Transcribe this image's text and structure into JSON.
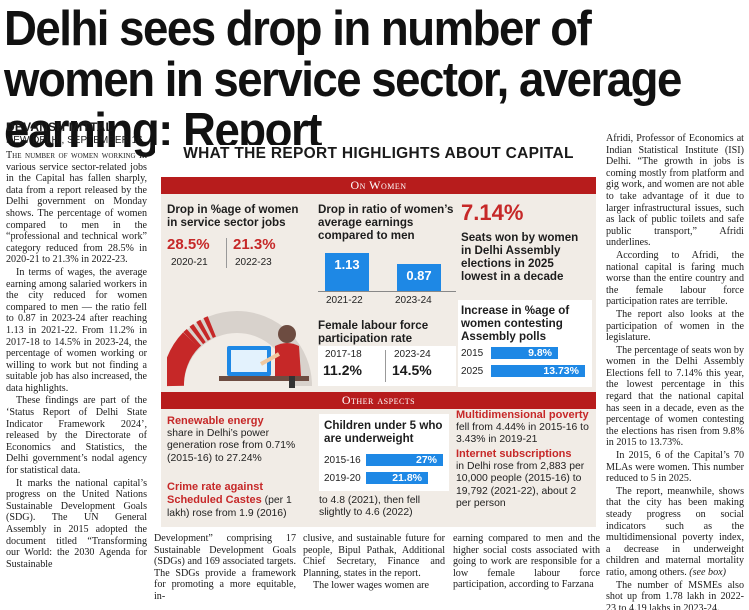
{
  "headline": "Delhi sees drop in number of women in service sector, average earning: Report",
  "byline": {
    "author": "DEVANSH MITTAL",
    "dateline": "NEW DELHI, SEPTEMBER 16"
  },
  "col1": {
    "p1_lead": "The number of women working",
    "p1_rest": " in various service sector-related jobs in the Capital has fallen sharply, data from a report released by the Delhi government on Monday shows. The percentage of women compared to men in the “professional and technical work” category reduced from 28.5% in 2020-21 to 21.3% in 2022-23.",
    "p2": "In terms of wages, the average earning among salaried workers in the city reduced for women compared to men — the ratio fell to 0.87 in 2023-24 after reaching 1.13 in 2021-22. From 11.2% in 2017-18 to 14.5% in 2023-24, the percentage of women working or willing to work but not finding a suitable job has also increased, the data highlights.",
    "p3": "These findings are part of the ‘Status Report of Delhi State Indicator Framework 2024’, released by the Directorate of Economics and Statistics, the Delhi government’s nodal agency for statistical data.",
    "p4": "It marks the national capital’s progress on the United Nations Sustainable Development Goals (SDG). The UN General Assembly in 2015 adopted the document titled “Transforming our World: the 2030 Agenda for Sustainable"
  },
  "col2a": "Development” comprising 17 Sustainable Development Goals (SDGs) and 169 associated targets. The SDGs provide a framework for promoting a more equitable, in-",
  "col2b": "clusive, and sustainable future for people, Bipul Pathak, Additional Chief Secretary, Finance and Planning, states in the report.",
  "col2b_p2": "The lower wages women are",
  "col2c": "earning compared to men and the higher social costs associated with going to work are responsible for a low female labour force participation, according to Farzana",
  "col3": {
    "p1": "Afridi, Professor of Economics at Indian Statistical Institute (ISI) Delhi. “The growth in jobs is coming mostly from platform and gig work, and women are not able to take advantage of it due to larger infrastructural issues, such as lack of public toilets and safe public transport,” Afridi underlines.",
    "p2": "According to Afridi, the national capital is faring much worse than the entire country and the female labour force participation rates are terrible.",
    "p3": "The report also looks at the participation of women in the legislature.",
    "p4": "The percentage of seats won by women in the Delhi Assembly Elections fell to 7.14% this year, the lowest percentage in this regard that the national capital has seen in a decade, even as the percentage of women contesting the elections has risen from 9.8% in 2015 to 13.73%.",
    "p5": "In 2015, 6 of the Capital’s 70 MLAs were women. This number reduced to 5 in 2025.",
    "p6": "The report, meanwhile, shows that the city has been making steady progress on social indicators such as the multidimensional poverty index, a decrease in underweight children and maternal mortality ratio, among others.",
    "p6_tail": "(see box)",
    "p7": "The number of MSMEs also shot up from 1.78 lakh in 2022-23 to 4.19 lakhs in 2023-24."
  },
  "graphic": {
    "title": "WHAT THE REPORT HIGHLIGHTS ABOUT CAPITAL",
    "on_women": "On Women",
    "other_aspects": "Other aspects",
    "service_jobs": {
      "heading": "Drop in %age of women in service sector jobs",
      "v1": "28.5%",
      "y1": "2020-21",
      "v2": "21.3%",
      "y2": "2022-23"
    },
    "earnings": {
      "heading": "Drop in ratio of women’s average earnings compared to men",
      "v1": "1.13",
      "y1": "2021-22",
      "v2": "0.87",
      "y2": "2023-24"
    },
    "seats": {
      "big": "7.14%",
      "text": "Seats won by women in Delhi Assembly elections in 2025 lowest in a decade"
    },
    "labour": {
      "heading": "Female labour force participation rate",
      "y1": "2017-18",
      "v1": "11.2%",
      "y2": "2023-24",
      "v2": "14.5%"
    },
    "contesting": {
      "heading": "Increase in %age of women contesting Assembly polls",
      "y1": "2015",
      "v1": "9.8%",
      "y2": "2025",
      "v2": "13.73%"
    },
    "renewable": {
      "heading": "Renewable energy",
      "text": "share in Delhi’s power generation rose from 0.71% (2015-16) to 27.24%"
    },
    "crime": {
      "heading": "Crime rate against Scheduled Castes",
      "text": " (per 1 lakh) rose from 1.9 (2016)"
    },
    "crime_cont": "to 4.8 (2021), then fell slightly to 4.6 (2022)",
    "underweight": {
      "heading": "Children under 5 who are underweight",
      "y1": "2015-16",
      "v1": "27%",
      "y2": "2019-20",
      "v2": "21.8%"
    },
    "poverty": {
      "heading": "Multidimensional poverty",
      "text": "fell from 4.44% in 2015-16 to 3.43% in 2019-21"
    },
    "internet": {
      "heading": "Internet subscriptions",
      "text": "in Delhi rose from 2,883 per 10,000 people (2015-16) to 19,792 (2021-22), about 2 per person"
    },
    "colors": {
      "accent_red": "#c62828",
      "bar_blue": "#1e88e5",
      "panel": "#f1ece6"
    }
  },
  "chart_data": [
    {
      "type": "bar",
      "categories": [
        "2020-21",
        "2022-23"
      ],
      "values": [
        28.5,
        21.3
      ],
      "title": "Drop in %age of women in service sector jobs"
    },
    {
      "type": "bar",
      "categories": [
        "2021-22",
        "2023-24"
      ],
      "values": [
        1.13,
        0.87
      ],
      "title": "Drop in ratio of women’s average earnings compared to men"
    },
    {
      "type": "table",
      "categories": [
        "2017-18",
        "2023-24"
      ],
      "values": [
        11.2,
        14.5
      ],
      "title": "Female labour force participation rate"
    },
    {
      "type": "bar",
      "categories": [
        "2015",
        "2025"
      ],
      "values": [
        9.8,
        13.73
      ],
      "title": "Increase in %age of women contesting Assembly polls"
    },
    {
      "type": "bar",
      "categories": [
        "2015-16",
        "2019-20"
      ],
      "values": [
        27,
        21.8
      ],
      "title": "Children under 5 who are underweight"
    }
  ]
}
